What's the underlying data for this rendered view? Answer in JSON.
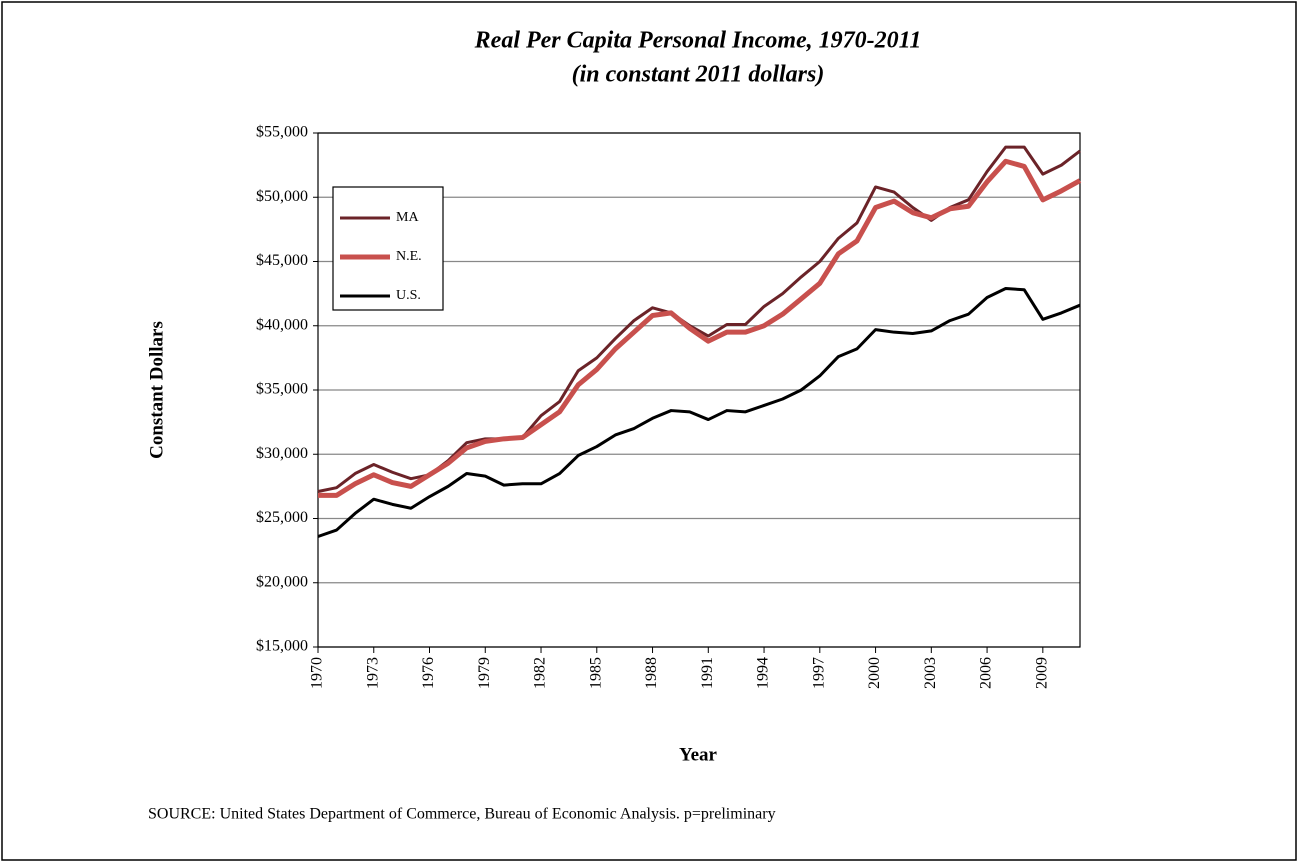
{
  "chart_data": {
    "type": "line",
    "title": "Real Per Capita Personal Income, 1970-2011",
    "subtitle": "(in constant 2011 dollars)",
    "x_label": "Year",
    "y_label": "Constant  Dollars",
    "note": "SOURCE:  United States Department of Commerce, Bureau of Economic Analysis.  p=preliminary",
    "x": [
      1970,
      1971,
      1972,
      1973,
      1974,
      1975,
      1976,
      1977,
      1978,
      1979,
      1980,
      1981,
      1982,
      1983,
      1984,
      1985,
      1986,
      1987,
      1988,
      1989,
      1990,
      1991,
      1992,
      1993,
      1994,
      1995,
      1996,
      1997,
      1998,
      1999,
      2000,
      2001,
      2002,
      2003,
      2004,
      2005,
      2006,
      2007,
      2008,
      2009,
      2010,
      2011
    ],
    "xlim": [
      1970,
      2011
    ],
    "xticks": [
      1970,
      1973,
      1976,
      1979,
      1982,
      1985,
      1988,
      1991,
      1994,
      1997,
      2000,
      2003,
      2006,
      2009
    ],
    "ylim": [
      15000,
      55000
    ],
    "yticks": [
      {
        "value": 15000,
        "label": "$15,000"
      },
      {
        "value": 20000,
        "label": "$20,000"
      },
      {
        "value": 25000,
        "label": "$25,000"
      },
      {
        "value": 30000,
        "label": "$30,000"
      },
      {
        "value": 35000,
        "label": "$35,000"
      },
      {
        "value": 40000,
        "label": "$40,000"
      },
      {
        "value": 45000,
        "label": "$45,000"
      },
      {
        "value": 50000,
        "label": "$50,000"
      },
      {
        "value": 55000,
        "label": "$55,000"
      }
    ],
    "grid": true,
    "legend": "upper left",
    "series": [
      {
        "name": "MA",
        "color": "#6b2328",
        "width": 3,
        "values": [
          27100,
          27400,
          28500,
          29200,
          28600,
          28100,
          28400,
          29500,
          30900,
          31200,
          31200,
          31300,
          33000,
          34100,
          36500,
          37500,
          39000,
          40400,
          41400,
          41000,
          40000,
          39200,
          40100,
          40100,
          41500,
          42500,
          43800,
          45000,
          46800,
          48000,
          50800,
          50400,
          49200,
          48200,
          49200,
          49800,
          52000,
          53900,
          53900,
          51800,
          52500,
          53600
        ]
      },
      {
        "name": "N.E.",
        "color": "#c8504d",
        "width": 5,
        "values": [
          26800,
          26800,
          27700,
          28400,
          27800,
          27500,
          28400,
          29300,
          30500,
          31000,
          31200,
          31300,
          32300,
          33300,
          35400,
          36600,
          38200,
          39500,
          40800,
          41000,
          39800,
          38800,
          39500,
          39500,
          40000,
          40900,
          42100,
          43300,
          45600,
          46600,
          49200,
          49700,
          48800,
          48400,
          49100,
          49300,
          51200,
          52800,
          52400,
          49800,
          50500,
          51300
        ]
      },
      {
        "name": "U.S.",
        "color": "#000000",
        "width": 3,
        "values": [
          23600,
          24100,
          25400,
          26500,
          26100,
          25800,
          26700,
          27500,
          28500,
          28300,
          27600,
          27700,
          27700,
          28500,
          29900,
          30600,
          31500,
          32000,
          32800,
          33400,
          33300,
          32700,
          33400,
          33300,
          33800,
          34300,
          35000,
          36100,
          37600,
          38200,
          39700,
          39500,
          39400,
          39600,
          40400,
          40900,
          42200,
          42900,
          42800,
          40500,
          41000,
          41600
        ]
      }
    ]
  }
}
